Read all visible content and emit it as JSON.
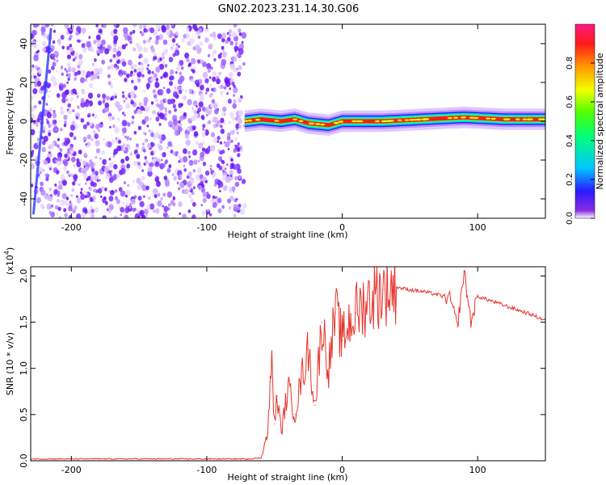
{
  "figure": {
    "title": "GN02.2023.231.14.30.G06"
  },
  "chart_data": [
    {
      "type": "heatmap",
      "xlabel": "Height of straight line (km)",
      "ylabel": "Frequency (Hz)",
      "xlim": [
        -230,
        150
      ],
      "ylim": [
        -50,
        50
      ],
      "x_ticks": [
        -200,
        -100,
        0,
        100
      ],
      "y_ticks": [
        -40,
        -20,
        0,
        20,
        40
      ],
      "noise_region_x": [
        -230,
        -72
      ],
      "signal_region_x": [
        -72,
        150
      ],
      "signal_frequency_hz": 0,
      "ridge": [
        {
          "x": -72,
          "y": 0
        },
        {
          "x": -60,
          "y": 1
        },
        {
          "x": -45,
          "y": 0
        },
        {
          "x": -35,
          "y": 1
        },
        {
          "x": -25,
          "y": -1
        },
        {
          "x": -10,
          "y": -2
        },
        {
          "x": 0,
          "y": 0
        },
        {
          "x": 30,
          "y": 0
        },
        {
          "x": 60,
          "y": 1
        },
        {
          "x": 90,
          "y": 2
        },
        {
          "x": 120,
          "y": 1
        },
        {
          "x": 150,
          "y": 1
        }
      ],
      "colorbar": {
        "label": "Normalized spectral amplitude",
        "range": [
          0.0,
          1.0
        ],
        "ticks": [
          0.0,
          0.2,
          0.4,
          0.6,
          0.8
        ],
        "tick_labels": [
          "0.0",
          "0.2",
          "0.4",
          "0.6",
          "0.8"
        ],
        "colormap": "rainbow-white"
      }
    },
    {
      "type": "line",
      "xlabel": "Height of straight line (km)",
      "ylabel": "SNR (10 * v/v)",
      "y_exponent_label": "(x10",
      "y_exponent_power": "4",
      "y_exponent_close": ")",
      "xlim": [
        -230,
        150
      ],
      "ylim": [
        0.0,
        2.1
      ],
      "x_ticks": [
        -200,
        -100,
        0,
        100
      ],
      "y_ticks": [
        0.0,
        0.5,
        1.0,
        1.5,
        2.0
      ],
      "y_tick_labels": [
        "0.0",
        "0.5",
        "1.0",
        "1.5",
        "2.0"
      ],
      "series": [
        {
          "color": "#e8342c",
          "x": [
            -230,
            -180,
            -130,
            -70,
            -60,
            -55,
            -52,
            -50,
            -48,
            -45,
            -40,
            -35,
            -30,
            -25,
            -20,
            -15,
            -10,
            -5,
            0,
            5,
            10,
            20,
            30,
            40,
            50,
            60,
            70,
            80,
            85,
            90,
            95,
            100,
            110,
            120,
            130,
            140,
            150
          ],
          "y": [
            0.02,
            0.02,
            0.02,
            0.02,
            0.03,
            0.3,
            1.1,
            0.4,
            0.7,
            0.3,
            0.8,
            0.5,
            0.9,
            1.2,
            0.6,
            1.5,
            1.0,
            1.6,
            1.3,
            1.5,
            1.6,
            1.75,
            1.85,
            1.88,
            1.85,
            1.83,
            1.8,
            1.75,
            1.45,
            2.05,
            1.5,
            1.78,
            1.73,
            1.68,
            1.63,
            1.58,
            1.52
          ]
        }
      ]
    }
  ]
}
